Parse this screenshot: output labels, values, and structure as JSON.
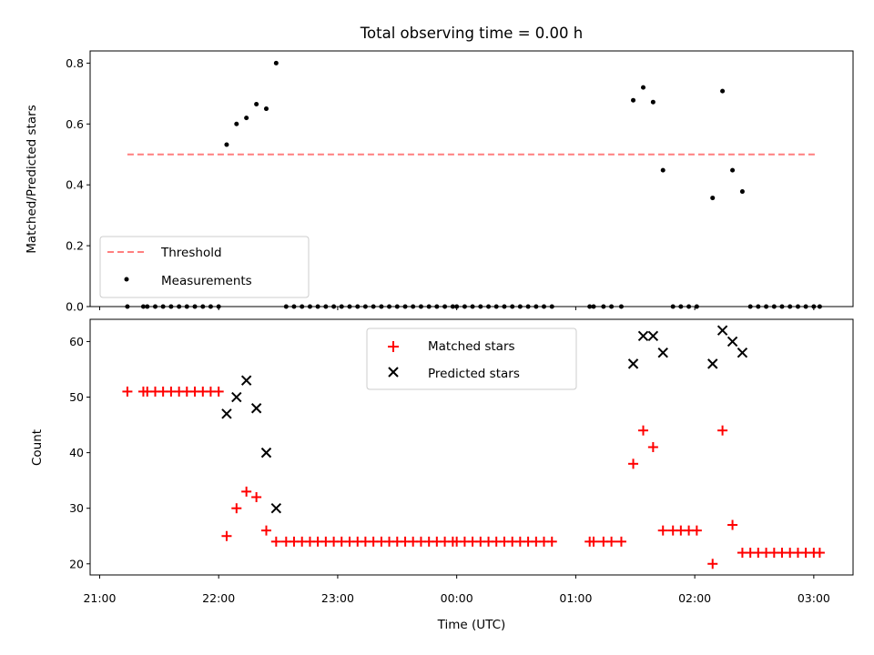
{
  "chart_data": [
    {
      "type": "scatter",
      "title": "Total observing time = 0.00 h",
      "xlabel": "",
      "ylabel": "Matched/Predicted stars",
      "xlim_hours": [
        20.92,
        27.33
      ],
      "ylim": [
        0,
        0.84
      ],
      "y_ticks": [
        0.0,
        0.2,
        0.4,
        0.6,
        0.8
      ],
      "y_tick_labels": [
        "0.0",
        "0.2",
        "0.4",
        "0.6",
        "0.8"
      ],
      "legend_position": "lower-left",
      "series": [
        {
          "name": "Threshold",
          "kind": "dashed-line",
          "color": "#ff7f7f",
          "x": [
            21.233,
            27.033
          ],
          "y": [
            0.5,
            0.5
          ]
        },
        {
          "name": "Measurements",
          "kind": "dot",
          "color": "#000000",
          "points": [
            [
              21.233,
              0
            ],
            [
              21.367,
              0
            ],
            [
              21.4,
              0
            ],
            [
              21.467,
              0
            ],
            [
              21.533,
              0
            ],
            [
              21.6,
              0
            ],
            [
              21.667,
              0
            ],
            [
              21.733,
              0
            ],
            [
              21.8,
              0
            ],
            [
              21.867,
              0
            ],
            [
              21.933,
              0
            ],
            [
              22.0,
              0
            ],
            [
              22.067,
              0.532
            ],
            [
              22.15,
              0.6
            ],
            [
              22.233,
              0.62
            ],
            [
              22.317,
              0.665
            ],
            [
              22.4,
              0.65
            ],
            [
              22.483,
              0.8
            ],
            [
              22.567,
              0
            ],
            [
              22.633,
              0
            ],
            [
              22.7,
              0
            ],
            [
              22.767,
              0
            ],
            [
              22.833,
              0
            ],
            [
              22.9,
              0
            ],
            [
              22.967,
              0
            ],
            [
              23.033,
              0
            ],
            [
              23.1,
              0
            ],
            [
              23.167,
              0
            ],
            [
              23.233,
              0
            ],
            [
              23.3,
              0
            ],
            [
              23.367,
              0
            ],
            [
              23.433,
              0
            ],
            [
              23.5,
              0
            ],
            [
              23.567,
              0
            ],
            [
              23.633,
              0
            ],
            [
              23.7,
              0
            ],
            [
              23.767,
              0
            ],
            [
              23.833,
              0
            ],
            [
              23.9,
              0
            ],
            [
              23.967,
              0
            ],
            [
              24.0,
              0
            ],
            [
              24.067,
              0
            ],
            [
              24.133,
              0
            ],
            [
              24.2,
              0
            ],
            [
              24.267,
              0
            ],
            [
              24.333,
              0
            ],
            [
              24.4,
              0
            ],
            [
              24.467,
              0
            ],
            [
              24.533,
              0
            ],
            [
              24.6,
              0
            ],
            [
              24.667,
              0
            ],
            [
              24.733,
              0
            ],
            [
              24.8,
              0
            ],
            [
              25.117,
              0
            ],
            [
              25.15,
              0
            ],
            [
              25.233,
              0
            ],
            [
              25.3,
              0
            ],
            [
              25.383,
              0
            ],
            [
              25.483,
              0.678
            ],
            [
              25.567,
              0.72
            ],
            [
              25.65,
              0.672
            ],
            [
              25.733,
              0.448
            ],
            [
              25.817,
              0
            ],
            [
              25.883,
              0
            ],
            [
              25.95,
              0
            ],
            [
              26.017,
              0
            ],
            [
              26.15,
              0.357
            ],
            [
              26.233,
              0.708
            ],
            [
              26.317,
              0.448
            ],
            [
              26.4,
              0.378
            ],
            [
              26.467,
              0
            ],
            [
              26.533,
              0
            ],
            [
              26.6,
              0
            ],
            [
              26.667,
              0
            ],
            [
              26.733,
              0
            ],
            [
              26.8,
              0
            ],
            [
              26.867,
              0
            ],
            [
              26.933,
              0
            ],
            [
              27.0,
              0
            ],
            [
              27.05,
              0
            ]
          ]
        }
      ]
    },
    {
      "type": "scatter",
      "title": "",
      "xlabel": "Time (UTC)",
      "ylabel": "Count",
      "xlim_hours": [
        20.92,
        27.33
      ],
      "ylim": [
        18,
        64
      ],
      "y_ticks": [
        20,
        30,
        40,
        50,
        60
      ],
      "y_tick_labels": [
        "20",
        "30",
        "40",
        "50",
        "60"
      ],
      "x_ticks_hours": [
        21,
        22,
        23,
        24,
        25,
        26,
        27
      ],
      "x_tick_labels": [
        "21:00",
        "22:00",
        "23:00",
        "00:00",
        "01:00",
        "02:00",
        "03:00"
      ],
      "legend_position": "upper-center",
      "series": [
        {
          "name": "Matched stars",
          "kind": "plus",
          "color": "#ff0000",
          "points": [
            [
              21.233,
              51
            ],
            [
              21.367,
              51
            ],
            [
              21.4,
              51
            ],
            [
              21.467,
              51
            ],
            [
              21.533,
              51
            ],
            [
              21.6,
              51
            ],
            [
              21.667,
              51
            ],
            [
              21.733,
              51
            ],
            [
              21.8,
              51
            ],
            [
              21.867,
              51
            ],
            [
              21.933,
              51
            ],
            [
              22.0,
              51
            ],
            [
              22.067,
              25
            ],
            [
              22.15,
              30
            ],
            [
              22.233,
              33
            ],
            [
              22.317,
              32
            ],
            [
              22.4,
              26
            ],
            [
              22.483,
              24
            ],
            [
              22.567,
              24
            ],
            [
              22.633,
              24
            ],
            [
              22.7,
              24
            ],
            [
              22.767,
              24
            ],
            [
              22.833,
              24
            ],
            [
              22.9,
              24
            ],
            [
              22.967,
              24
            ],
            [
              23.033,
              24
            ],
            [
              23.1,
              24
            ],
            [
              23.167,
              24
            ],
            [
              23.233,
              24
            ],
            [
              23.3,
              24
            ],
            [
              23.367,
              24
            ],
            [
              23.433,
              24
            ],
            [
              23.5,
              24
            ],
            [
              23.567,
              24
            ],
            [
              23.633,
              24
            ],
            [
              23.7,
              24
            ],
            [
              23.767,
              24
            ],
            [
              23.833,
              24
            ],
            [
              23.9,
              24
            ],
            [
              23.967,
              24
            ],
            [
              24.0,
              24
            ],
            [
              24.067,
              24
            ],
            [
              24.133,
              24
            ],
            [
              24.2,
              24
            ],
            [
              24.267,
              24
            ],
            [
              24.333,
              24
            ],
            [
              24.4,
              24
            ],
            [
              24.467,
              24
            ],
            [
              24.533,
              24
            ],
            [
              24.6,
              24
            ],
            [
              24.667,
              24
            ],
            [
              24.733,
              24
            ],
            [
              24.8,
              24
            ],
            [
              25.117,
              24
            ],
            [
              25.15,
              24
            ],
            [
              25.233,
              24
            ],
            [
              25.3,
              24
            ],
            [
              25.383,
              24
            ],
            [
              25.483,
              38
            ],
            [
              25.567,
              44
            ],
            [
              25.65,
              41
            ],
            [
              25.733,
              26
            ],
            [
              25.817,
              26
            ],
            [
              25.883,
              26
            ],
            [
              25.95,
              26
            ],
            [
              26.017,
              26
            ],
            [
              26.15,
              20
            ],
            [
              26.233,
              44
            ],
            [
              26.317,
              27
            ],
            [
              26.4,
              22
            ],
            [
              26.467,
              22
            ],
            [
              26.533,
              22
            ],
            [
              26.6,
              22
            ],
            [
              26.667,
              22
            ],
            [
              26.733,
              22
            ],
            [
              26.8,
              22
            ],
            [
              26.867,
              22
            ],
            [
              26.933,
              22
            ],
            [
              27.0,
              22
            ],
            [
              27.05,
              22
            ]
          ]
        },
        {
          "name": "Predicted stars",
          "kind": "cross",
          "color": "#000000",
          "points": [
            [
              22.067,
              47
            ],
            [
              22.15,
              50
            ],
            [
              22.233,
              53
            ],
            [
              22.317,
              48
            ],
            [
              22.4,
              40
            ],
            [
              22.483,
              30
            ],
            [
              25.483,
              56
            ],
            [
              25.567,
              61
            ],
            [
              25.65,
              61
            ],
            [
              25.733,
              58
            ],
            [
              26.15,
              56
            ],
            [
              26.233,
              62
            ],
            [
              26.317,
              60
            ],
            [
              26.4,
              58
            ]
          ]
        }
      ]
    }
  ]
}
